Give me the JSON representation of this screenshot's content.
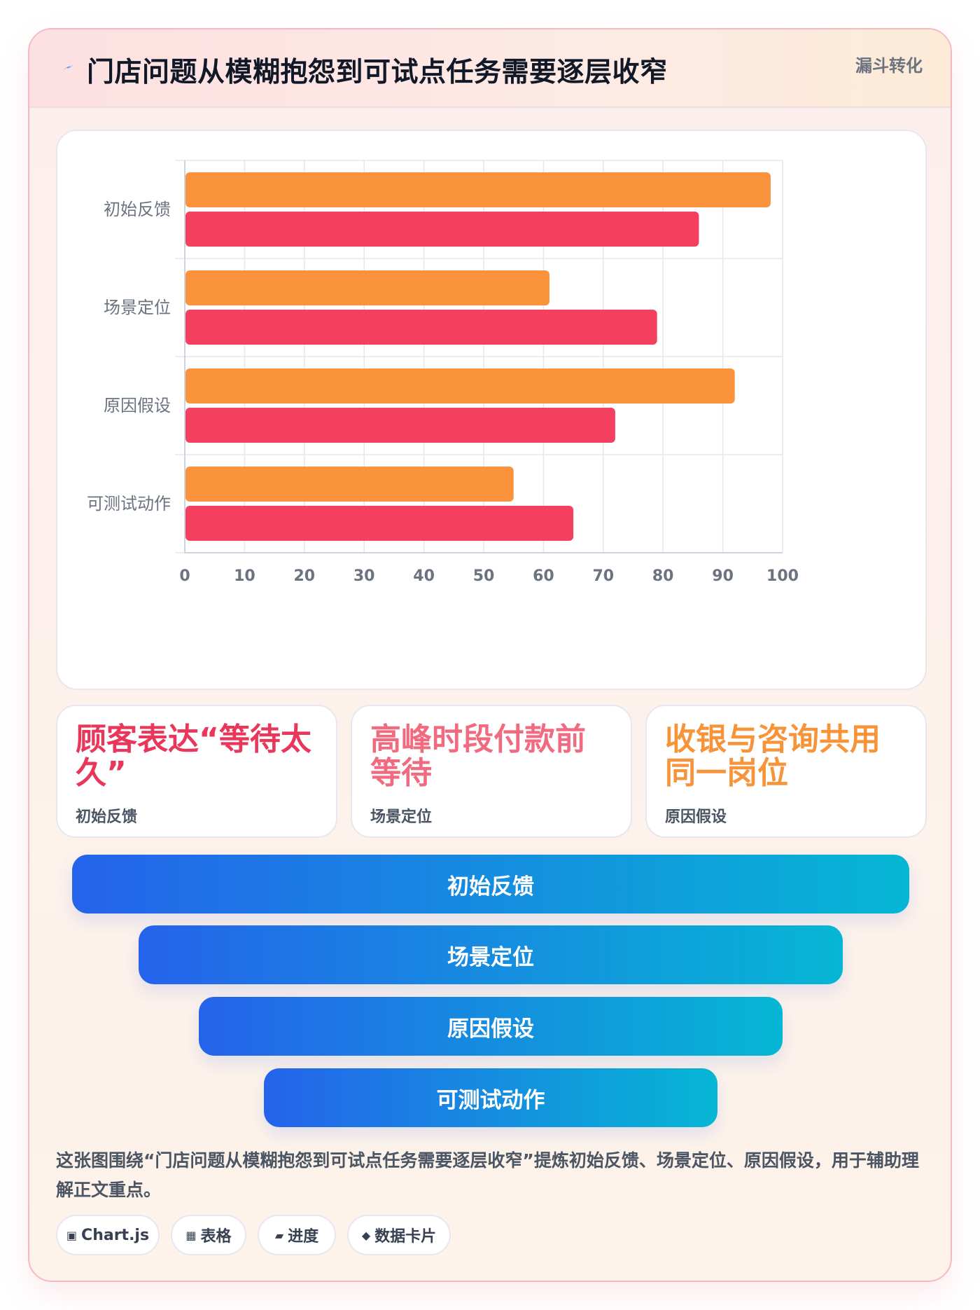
{
  "header": {
    "title": "门店问题从模糊抱怨到可试点任务需要逐层收窄",
    "tag": "漏斗转化"
  },
  "chart_data": {
    "type": "bar",
    "orientation": "horizontal",
    "categories": [
      "初始反馈",
      "场景定位",
      "原因假设",
      "可测试动作"
    ],
    "series": [
      {
        "color": "#fb923c",
        "values": [
          98,
          61,
          92,
          55
        ]
      },
      {
        "color": "#f43f5e",
        "values": [
          86,
          79,
          72,
          65
        ]
      }
    ],
    "xlim": [
      0,
      100
    ],
    "xticks": [
      0,
      10,
      20,
      30,
      40,
      50,
      60,
      70,
      80,
      90,
      100
    ],
    "grid": true,
    "legend": "none"
  },
  "cards": [
    {
      "headline": "顾客表达“等待太久”",
      "sub": "初始反馈",
      "color": "#e8375a"
    },
    {
      "headline": "高峰时段付款前等待",
      "sub": "场景定位",
      "color": "#f06b80"
    },
    {
      "headline": "收银与咨询共用同一岗位",
      "sub": "原因假设",
      "color": "#f7943a"
    }
  ],
  "funnel": [
    "初始反馈",
    "场景定位",
    "原因假设",
    "可测试动作"
  ],
  "caption": "这张图围绕“门店问题从模糊抱怨到可试点任务需要逐层收窄”提炼初始反馈、场景定位、原因假设，用于辅助理解正文重点。",
  "chips": [
    {
      "icon": "▣",
      "label": "Chart.js"
    },
    {
      "icon": "▦",
      "label": "表格"
    },
    {
      "icon": "▰",
      "label": "进度"
    },
    {
      "icon": "◆",
      "label": "数据卡片"
    }
  ],
  "colors": {
    "accent_blue": "#2563eb",
    "accent_cyan": "#06b6d4",
    "bar_orange": "#fb923c",
    "bar_red": "#f43f5e"
  }
}
